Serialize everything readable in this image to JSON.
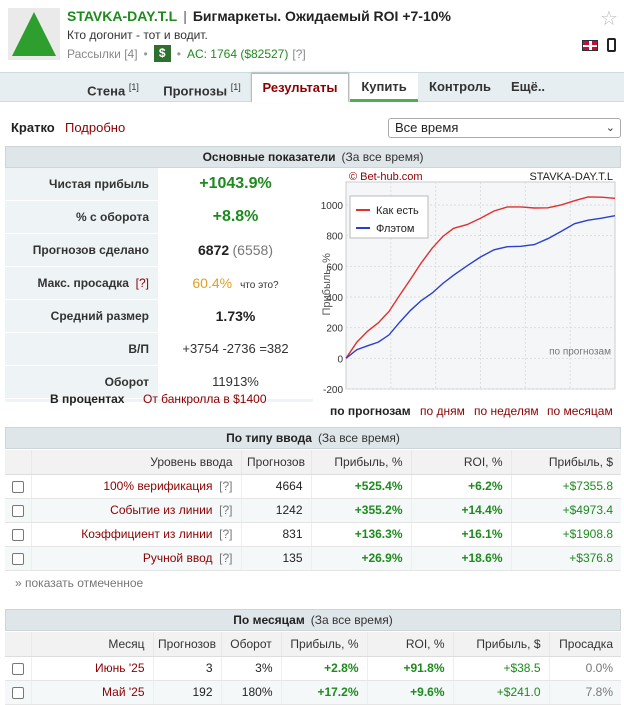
{
  "header": {
    "name": "STAVKA-DAY.T.L",
    "separator": "|",
    "description": "Бигмаркеты. Ожидаемый ROI +7-10%",
    "motto": "Кто догонит - тот и водит.",
    "mailings": "Рассылки [4]",
    "dollar": "$",
    "ac": "AC: 1764 ($82527)",
    "ac_help": "[?]"
  },
  "nav": {
    "tabs": [
      {
        "label": "Стена",
        "sup": "[1]"
      },
      {
        "label": "Прогнозы",
        "sup": "[1]"
      },
      {
        "label": "Результаты",
        "sup": ""
      },
      {
        "label": "Купить",
        "sup": ""
      },
      {
        "label": "Контроль",
        "sup": ""
      },
      {
        "label": "Ещё..",
        "sup": ""
      }
    ]
  },
  "filter": {
    "brief": "Кратко",
    "detail": "Подробно",
    "period": "Все время"
  },
  "main_stats": {
    "title": "Основные показатели",
    "subtitle": "(За все время)",
    "rows": [
      {
        "label": "Чистая прибыль",
        "value": "+1043.9%"
      },
      {
        "label": "% с оборота",
        "value": "+8.8%"
      },
      {
        "label": "Прогнозов сделано",
        "value": "6872",
        "extra": "(6558)"
      },
      {
        "label": "Макс. просадка",
        "help": "[?]",
        "value": "60.4%",
        "extra": "что это?"
      },
      {
        "label": "Средний размер",
        "value": "1.73%"
      },
      {
        "label": "В/П",
        "value": "+3754 -2736 =382"
      },
      {
        "label": "Оборот",
        "value": "11913%"
      }
    ],
    "percent_label": "В процентах",
    "bankroll": "От банкролла в $1400"
  },
  "chart_links": [
    "по прогнозам",
    "по дням",
    "по неделям",
    "по месяцам"
  ],
  "chart_data": {
    "type": "line",
    "title": "STAVKA-DAY.T.L",
    "watermark": "© Bet-hub.com",
    "ylabel": "Прибыль, %",
    "xlabel": "по прогнозам",
    "ylim": [
      -200,
      1150
    ],
    "yticks": [
      -200,
      0,
      200,
      400,
      600,
      800,
      1000
    ],
    "legend": "top-left",
    "series": [
      {
        "name": "Как есть",
        "color": "#e03030",
        "x": [
          0,
          0.04,
          0.08,
          0.12,
          0.16,
          0.2,
          0.24,
          0.28,
          0.32,
          0.36,
          0.4,
          0.45,
          0.5,
          0.55,
          0.6,
          0.65,
          0.7,
          0.75,
          0.8,
          0.85,
          0.9,
          0.95,
          1.0
        ],
        "values": [
          0,
          90,
          160,
          230,
          320,
          430,
          520,
          610,
          700,
          790,
          860,
          890,
          920,
          950,
          970,
          980,
          990,
          1000,
          1010,
          1020,
          1035,
          1040,
          1044
        ]
      },
      {
        "name": "Флэтом",
        "color": "#2a3fd0",
        "x": [
          0,
          0.04,
          0.08,
          0.12,
          0.16,
          0.2,
          0.24,
          0.28,
          0.32,
          0.36,
          0.4,
          0.45,
          0.5,
          0.55,
          0.6,
          0.65,
          0.7,
          0.75,
          0.8,
          0.85,
          0.9,
          0.95,
          1.0
        ],
        "values": [
          0,
          40,
          80,
          120,
          170,
          240,
          300,
          360,
          420,
          500,
          560,
          610,
          650,
          690,
          720,
          740,
          760,
          790,
          820,
          860,
          890,
          920,
          930
        ]
      }
    ]
  },
  "by_type": {
    "title": "По типу ввода",
    "subtitle": "(За все время)",
    "columns": [
      "Уровень ввода",
      "Прогнозов",
      "Прибыль, %",
      "ROI, %",
      "Прибыль, $"
    ],
    "rows": [
      {
        "name": "100% верификация",
        "help": "[?]",
        "count": "4664",
        "profit_pct": "+525.4%",
        "roi": "+6.2%",
        "profit_usd": "+$7355.8"
      },
      {
        "name": "Событие из линии",
        "help": "[?]",
        "count": "1242",
        "profit_pct": "+355.2%",
        "roi": "+14.4%",
        "profit_usd": "+$4973.4"
      },
      {
        "name": "Коэффициент из линии",
        "help": "[?]",
        "count": "831",
        "profit_pct": "+136.3%",
        "roi": "+16.1%",
        "profit_usd": "+$1908.8"
      },
      {
        "name": "Ручной ввод",
        "help": "[?]",
        "count": "135",
        "profit_pct": "+26.9%",
        "roi": "+18.6%",
        "profit_usd": "+$376.8"
      }
    ],
    "show_selected": "» показать отмеченное"
  },
  "by_month": {
    "title": "По месяцам",
    "subtitle": "(За все время)",
    "columns": [
      "Месяц",
      "Прогнозов",
      "Оборот",
      "Прибыль, %",
      "ROI, %",
      "Прибыль, $",
      "Просадка"
    ],
    "rows": [
      {
        "month": "Июнь '25",
        "count": "3",
        "turnover": "3%",
        "profit_pct": "+2.8%",
        "roi": "+91.8%",
        "profit_usd": "+$38.5",
        "drawdown": "0.0%"
      },
      {
        "month": "Май '25",
        "count": "192",
        "turnover": "180%",
        "profit_pct": "+17.2%",
        "roi": "+9.6%",
        "profit_usd": "+$241.0",
        "drawdown": "7.8%"
      }
    ]
  }
}
